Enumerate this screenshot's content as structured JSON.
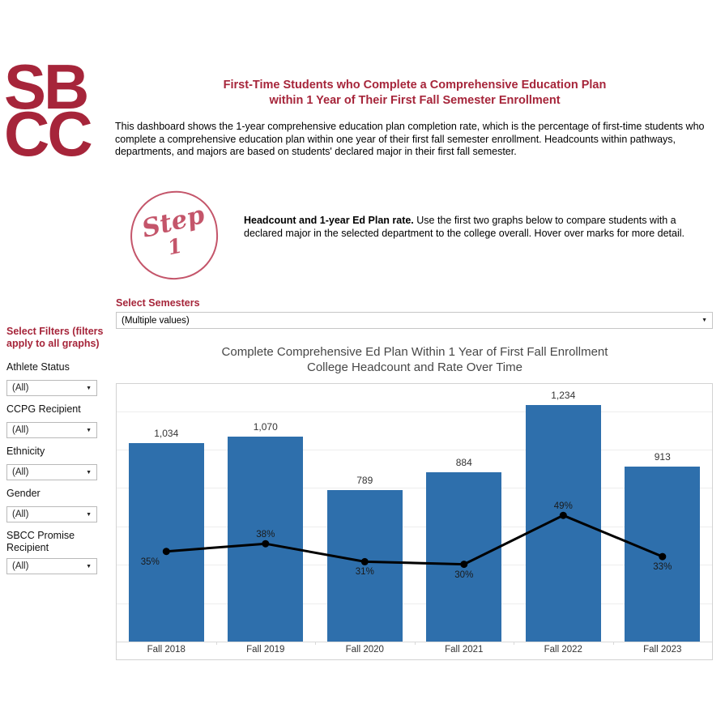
{
  "brand": {
    "logo_line1": "SB",
    "logo_line2": "CC",
    "color": "#A6253A"
  },
  "header": {
    "title_line1": "First-Time Students who Complete a Comprehensive Education Plan",
    "title_line2": "within 1 Year of Their First Fall Semester Enrollment",
    "description": "This dashboard shows the 1-year comprehensive education plan completion rate, which is the percentage of first-time students who complete a comprehensive education plan within one year of their first fall semester enrollment. Headcounts within pathways, departments, and majors are based on students' declared major in their first fall semester."
  },
  "step": {
    "badge_word": "Step",
    "badge_number": "1",
    "badge_color": "#C4556A",
    "bold_text": "Headcount and 1-year Ed Plan rate.",
    "text": "Use the first two graphs below to compare students with a declared major in the selected department to the college overall. Hover over marks for more detail."
  },
  "semester_filter": {
    "label": "Select Semesters",
    "value": "(Multiple values)"
  },
  "sidebar": {
    "heading": "Select Filters (filters apply to all graphs)",
    "filters": [
      {
        "label": "Athlete Status",
        "value": "(All)"
      },
      {
        "label": "CCPG Recipient",
        "value": "(All)"
      },
      {
        "label": "Ethnicity",
        "value": "(All)"
      },
      {
        "label": "Gender",
        "value": "(All)"
      },
      {
        "label": "SBCC Promise Recipient",
        "value": "(All)"
      }
    ]
  },
  "chart_data": {
    "type": "bar",
    "title": "Complete Comprehensive Ed Plan Within 1 Year of First Fall Enrollment",
    "subtitle": "College Headcount and Rate Over Time",
    "categories": [
      "Fall 2018",
      "Fall 2019",
      "Fall 2020",
      "Fall 2021",
      "Fall 2022",
      "Fall 2023"
    ],
    "series": [
      {
        "name": "College Headcount",
        "type": "bar",
        "values": [
          1034,
          1070,
          789,
          884,
          1234,
          913
        ],
        "labels": [
          "1,034",
          "1,070",
          "789",
          "884",
          "1,234",
          "913"
        ],
        "color": "#2E6FAC"
      },
      {
        "name": "1-Year Ed Plan Completion Rate",
        "type": "line",
        "values": [
          35,
          38,
          31,
          30,
          49,
          33
        ],
        "labels": [
          "35%",
          "38%",
          "31%",
          "30%",
          "49%",
          "33%"
        ],
        "label_positions": [
          "below",
          "above",
          "below",
          "below",
          "above",
          "below"
        ],
        "label_dx": [
          -20,
          0,
          0,
          0,
          0,
          0
        ],
        "color": "#000000"
      }
    ],
    "bar_axis_max": 1342,
    "pct_axis_range": [
      0,
      100
    ],
    "gridline_step": 200,
    "grid": true,
    "legend": "none",
    "xlabel": "",
    "ylabel": ""
  }
}
